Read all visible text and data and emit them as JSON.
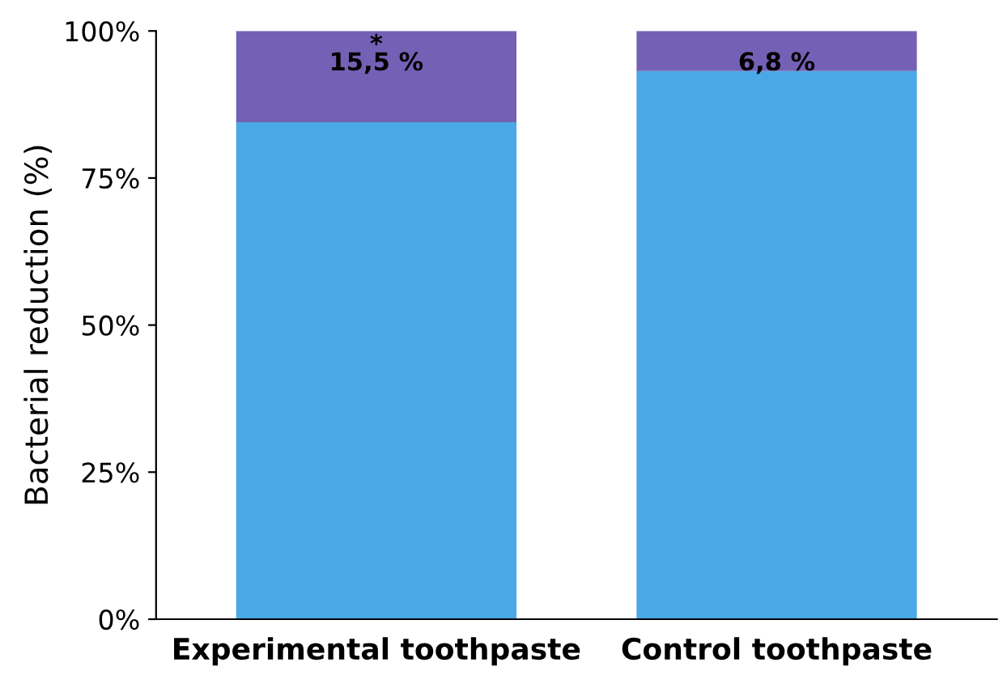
{
  "chart_data": {
    "type": "bar",
    "stacked": true,
    "ylabel": "Bacterial reduction (%)",
    "categories": [
      "Experimental toothpaste",
      "Control toothpaste"
    ],
    "series": [
      {
        "color": "#4aa8e6",
        "values": [
          84.5,
          93.2
        ]
      },
      {
        "color": "#7461b5",
        "values": [
          15.5,
          6.8
        ],
        "value_labels": [
          "15,5 %",
          "6,8 %"
        ]
      }
    ],
    "ylim": [
      0,
      100
    ],
    "yticks": [
      {
        "value": 0,
        "label": "0%"
      },
      {
        "value": 25,
        "label": "25%"
      },
      {
        "value": 50,
        "label": "50%"
      },
      {
        "value": 75,
        "label": "75%"
      },
      {
        "value": 100,
        "label": "100%"
      }
    ],
    "grid": false,
    "legend": false,
    "annotations": [
      "*"
    ]
  }
}
